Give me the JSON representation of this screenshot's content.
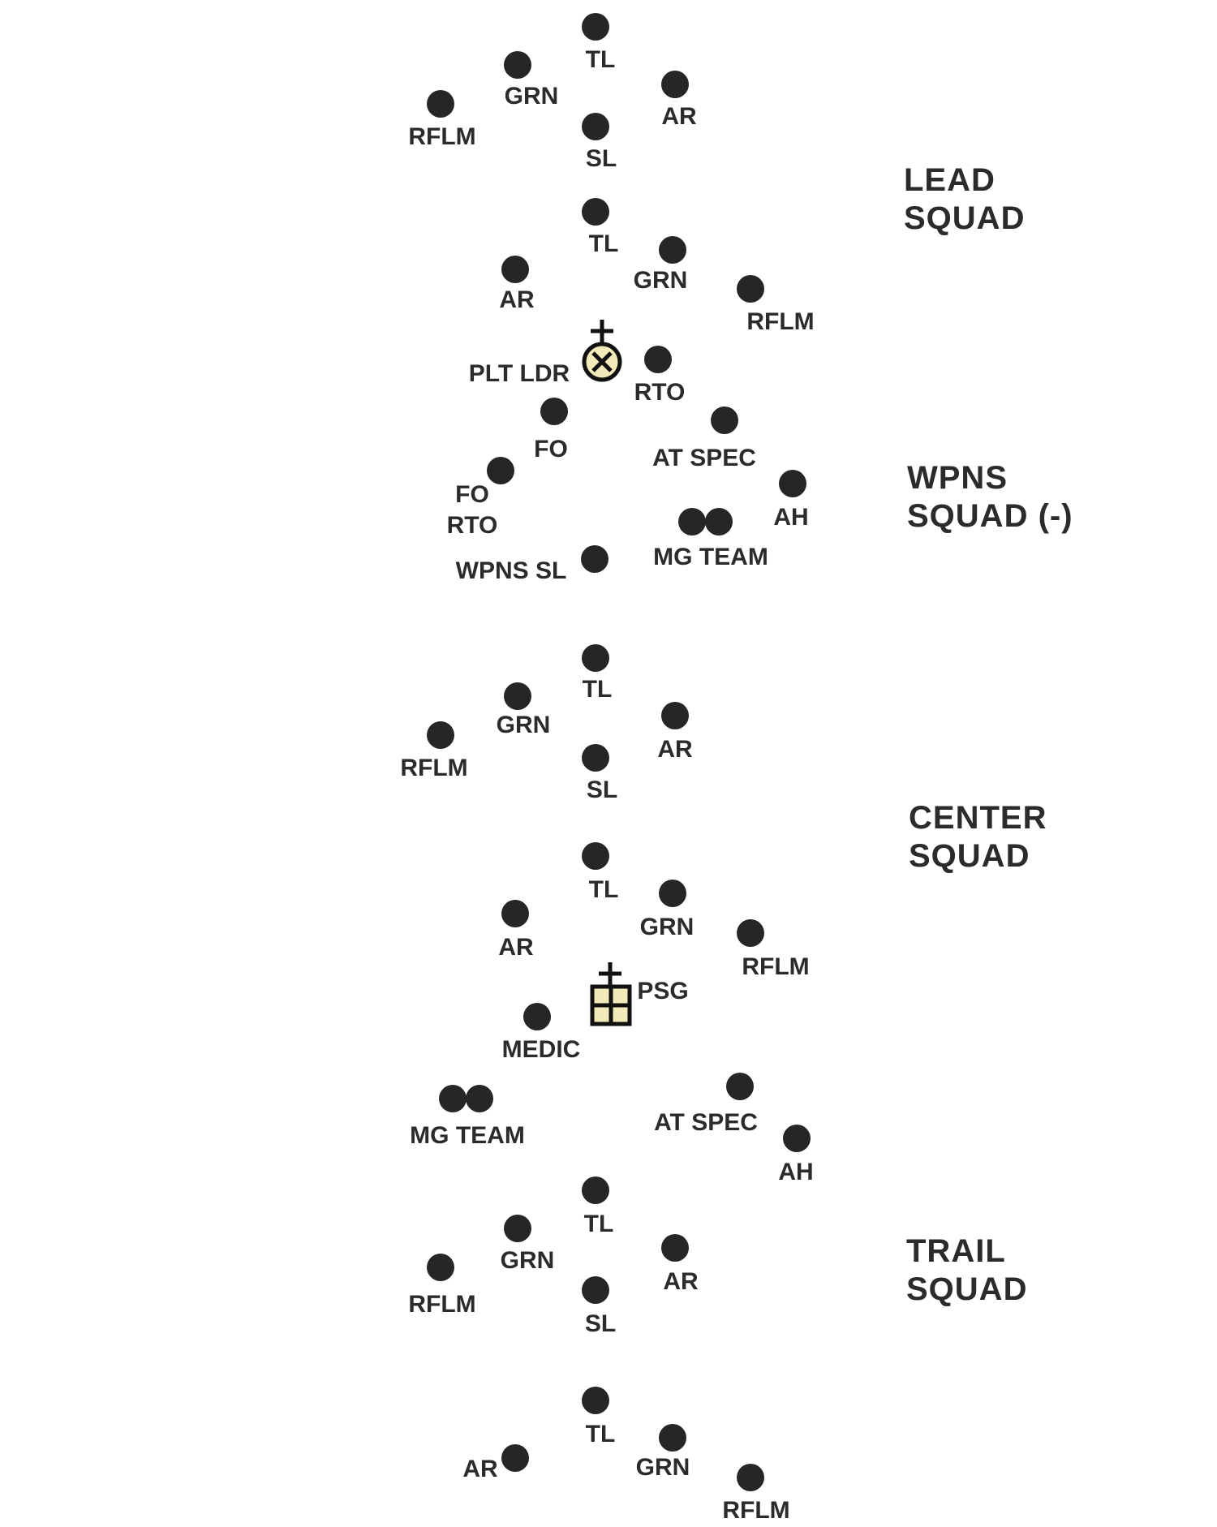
{
  "colors": {
    "member_dot": "#262626",
    "text": "#2b2b2b",
    "leader_symbol_fill": "#f3eaba"
  },
  "icons": {
    "member": "filled-circle",
    "platoon_leader": "circle-cross-with-plus",
    "platoon_sergeant": "grid-box-with-plus"
  },
  "squad_labels": {
    "lead": [
      "LEAD",
      "SQUAD"
    ],
    "weapons": [
      "WPNS",
      "SQUAD (-)"
    ],
    "center": [
      "CENTER",
      "SQUAD"
    ],
    "trail": [
      "TRAIL",
      "SQUAD"
    ]
  },
  "lead_squad": {
    "team_a": [
      "TL",
      "GRN",
      "AR",
      "RFLM",
      "SL"
    ],
    "team_b": [
      "TL",
      "GRN",
      "AR",
      "RFLM"
    ]
  },
  "hq": [
    "PLT LDR",
    "RTO",
    "FO",
    "FO",
    "RTO"
  ],
  "weapons_squad": [
    "AT SPEC",
    "AH",
    "MG TEAM",
    "WPNS SL"
  ],
  "center_squad": {
    "team_a": [
      "TL",
      "GRN",
      "AR",
      "RFLM",
      "SL"
    ],
    "team_b": [
      "TL",
      "GRN",
      "AR",
      "RFLM"
    ]
  },
  "center_support": [
    "PSG",
    "MEDIC",
    "MG TEAM",
    "AT SPEC",
    "AH"
  ],
  "trail_squad": {
    "team_a": [
      "TL",
      "GRN",
      "AR",
      "RFLM",
      "SL"
    ],
    "team_b": [
      "TL",
      "AR",
      "GRN",
      "RFLM"
    ]
  }
}
